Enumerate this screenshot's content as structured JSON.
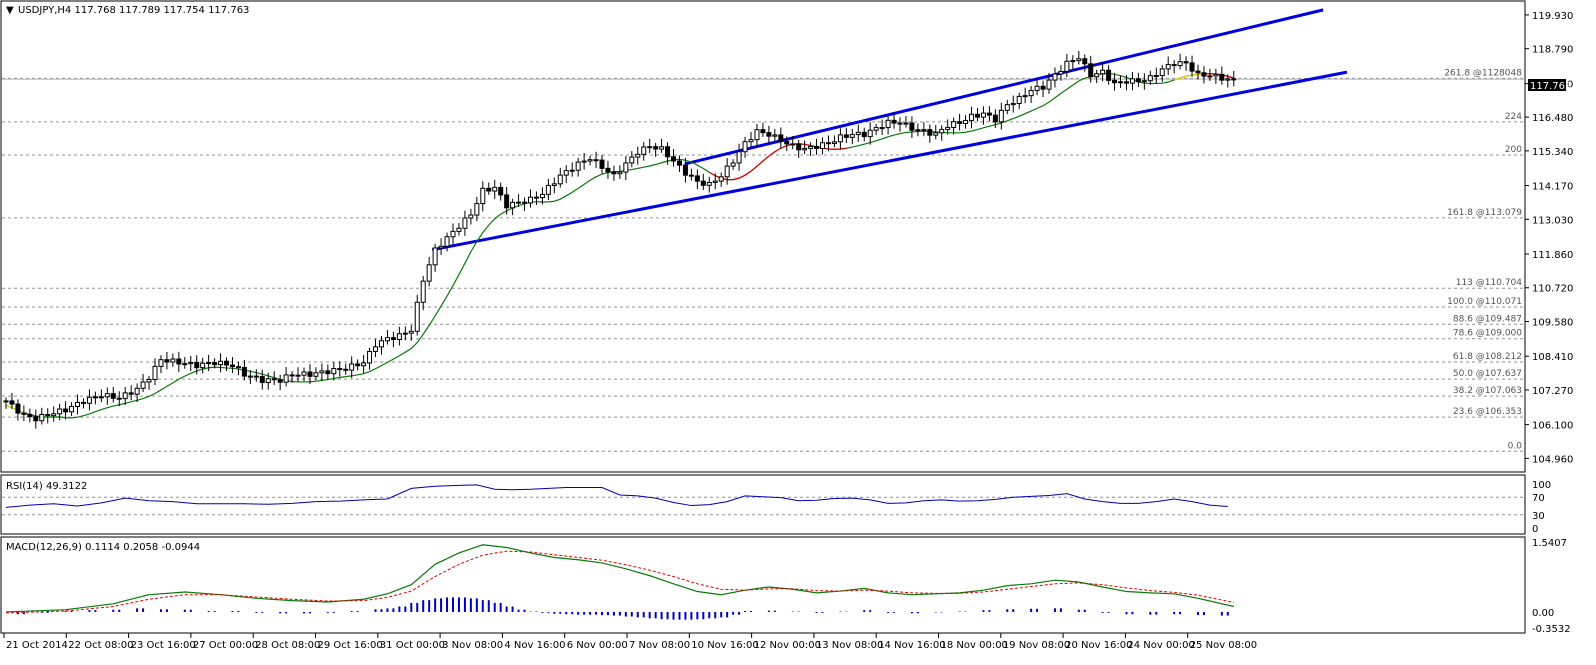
{
  "header": {
    "symbol_line": "USDJPY,H4  117.768 117.789 117.754 117.763",
    "current_price": "117.763"
  },
  "colors": {
    "channel": "#0000e0",
    "ma": "#0a7a0a",
    "ma_alt": "#e00000",
    "ma_yellow": "#e6d200",
    "rsi": "#0000b0",
    "macd_line": "#0a7a0a",
    "signal_line": "#e00000",
    "histogram": "#0000c0",
    "level_line": "#909090",
    "price_tag_bg": "#000000"
  },
  "price_axis": {
    "ticks": [
      "119.930",
      "118.790",
      "117.610",
      "116.480",
      "115.340",
      "114.170",
      "113.030",
      "111.860",
      "110.720",
      "109.580",
      "108.410",
      "107.270",
      "106.100",
      "104.960"
    ],
    "tick_values": [
      119.93,
      118.79,
      117.61,
      116.48,
      115.34,
      114.17,
      113.03,
      111.86,
      110.72,
      109.58,
      108.41,
      107.27,
      106.1,
      104.96
    ]
  },
  "fib_levels": [
    {
      "label": "261.8  @1128048",
      "value": 117.79
    },
    {
      "label": "224",
      "value": 116.32
    },
    {
      "label": "200",
      "value": 115.2
    },
    {
      "label": "161.8  @113.079",
      "value": 113.079
    },
    {
      "label": "113  @110.704",
      "value": 110.704
    },
    {
      "label": "100.0  @110.071",
      "value": 110.071
    },
    {
      "label": "88.6  @109.487",
      "value": 109.487
    },
    {
      "label": "78.6  @109.000",
      "value": 109.0
    },
    {
      "label": "61.8  @108.212",
      "value": 108.212
    },
    {
      "label": "50.0  @107.637",
      "value": 107.637
    },
    {
      "label": "38.2  @107.063",
      "value": 107.063
    },
    {
      "label": "23.6  @106.353",
      "value": 106.353
    },
    {
      "label": "0.0",
      "value": 105.2
    }
  ],
  "rsi": {
    "label": "RSI(14) 49.3122",
    "ticks": [
      "100",
      "70",
      "30",
      "0"
    ],
    "tick_values": [
      100,
      70,
      30,
      0
    ]
  },
  "macd": {
    "label": "MACD(12,26,9) 0.1114 0.2058 -0.0944",
    "ticks": [
      "1.5407",
      "0.00",
      "-0.3532"
    ],
    "tick_values": [
      1.5407,
      0.0,
      -0.3532
    ]
  },
  "time_axis": {
    "labels": [
      "21 Oct 2014",
      "22 Oct 08:00",
      "23 Oct 16:00",
      "27 Oct 00:00",
      "28 Oct 08:00",
      "29 Oct 16:00",
      "31 Oct 00:00",
      "3 Nov 08:00",
      "4 Nov 16:00",
      "6 Nov 00:00",
      "7 Nov 08:00",
      "10 Nov 16:00",
      "12 Nov 00:00",
      "13 Nov 08:00",
      "14 Nov 16:00",
      "18 Nov 00:00",
      "19 Nov 08:00",
      "20 Nov 16:00",
      "24 Nov 00:00",
      "25 Nov 08:00"
    ]
  },
  "chart_data": {
    "type": "candlestick",
    "title": "USDJPY,H4",
    "ohlc_readout": [
      117.768,
      117.789,
      117.754,
      117.763
    ],
    "ylim": [
      104.5,
      120.4
    ],
    "close_series": [
      [
        0,
        106.9
      ],
      [
        3,
        106.4
      ],
      [
        5,
        106.3
      ],
      [
        8,
        106.5
      ],
      [
        10,
        106.6
      ],
      [
        13,
        106.9
      ],
      [
        16,
        107.1
      ],
      [
        19,
        107.0
      ],
      [
        22,
        107.3
      ],
      [
        24,
        107.7
      ],
      [
        26,
        108.3
      ],
      [
        29,
        108.2
      ],
      [
        32,
        108.1
      ],
      [
        35,
        108.2
      ],
      [
        38,
        108.1
      ],
      [
        40,
        107.8
      ],
      [
        43,
        107.6
      ],
      [
        46,
        107.6
      ],
      [
        48,
        107.8
      ],
      [
        51,
        107.8
      ],
      [
        54,
        107.9
      ],
      [
        57,
        108.0
      ],
      [
        60,
        108.2
      ],
      [
        62,
        108.8
      ],
      [
        64,
        109.0
      ],
      [
        66,
        109.1
      ],
      [
        68,
        109.3
      ],
      [
        70,
        111.0
      ],
      [
        72,
        112.0
      ],
      [
        74,
        112.4
      ],
      [
        76,
        112.8
      ],
      [
        78,
        113.2
      ],
      [
        80,
        114.0
      ],
      [
        82,
        114.1
      ],
      [
        84,
        113.5
      ],
      [
        86,
        113.6
      ],
      [
        88,
        113.7
      ],
      [
        90,
        113.9
      ],
      [
        93,
        114.5
      ],
      [
        96,
        114.9
      ],
      [
        98,
        115.1
      ],
      [
        100,
        114.8
      ],
      [
        102,
        114.5
      ],
      [
        104,
        114.9
      ],
      [
        106,
        115.3
      ],
      [
        108,
        115.5
      ],
      [
        110,
        115.4
      ],
      [
        112,
        115.0
      ],
      [
        114,
        114.6
      ],
      [
        116,
        114.3
      ],
      [
        118,
        114.2
      ],
      [
        120,
        114.5
      ],
      [
        122,
        115.0
      ],
      [
        124,
        115.6
      ],
      [
        126,
        116.0
      ],
      [
        128,
        115.9
      ],
      [
        130,
        115.7
      ],
      [
        132,
        115.5
      ],
      [
        134,
        115.4
      ],
      [
        136,
        115.5
      ],
      [
        138,
        115.6
      ],
      [
        140,
        115.8
      ],
      [
        142,
        115.9
      ],
      [
        144,
        115.9
      ],
      [
        146,
        116.1
      ],
      [
        148,
        116.3
      ],
      [
        150,
        116.3
      ],
      [
        152,
        116.1
      ],
      [
        154,
        116.0
      ],
      [
        156,
        115.9
      ],
      [
        158,
        116.2
      ],
      [
        160,
        116.3
      ],
      [
        162,
        116.5
      ],
      [
        164,
        116.6
      ],
      [
        166,
        116.4
      ],
      [
        168,
        116.9
      ],
      [
        170,
        117.1
      ],
      [
        172,
        117.4
      ],
      [
        174,
        117.5
      ],
      [
        176,
        117.9
      ],
      [
        178,
        118.3
      ],
      [
        180,
        118.5
      ],
      [
        182,
        117.9
      ],
      [
        184,
        118.0
      ],
      [
        186,
        117.6
      ],
      [
        188,
        117.7
      ],
      [
        190,
        117.7
      ],
      [
        192,
        117.8
      ],
      [
        194,
        118.1
      ],
      [
        196,
        118.3
      ],
      [
        198,
        118.3
      ],
      [
        200,
        117.9
      ],
      [
        202,
        117.9
      ],
      [
        204,
        117.8
      ],
      [
        206,
        117.7
      ]
    ],
    "channel_upper": [
      [
        113.9,
        114.9
      ],
      [
        221.0,
        120.1
      ]
    ],
    "channel_lower": [
      [
        71.5,
        112.0
      ],
      [
        225.0,
        118.0
      ]
    ],
    "rsi_values": [
      [
        0,
        47
      ],
      [
        4,
        52
      ],
      [
        8,
        55
      ],
      [
        12,
        50
      ],
      [
        16,
        57
      ],
      [
        20,
        68
      ],
      [
        24,
        62
      ],
      [
        28,
        60
      ],
      [
        32,
        55
      ],
      [
        36,
        55
      ],
      [
        40,
        55
      ],
      [
        44,
        54
      ],
      [
        48,
        56
      ],
      [
        52,
        60
      ],
      [
        56,
        61
      ],
      [
        60,
        64
      ],
      [
        64,
        66
      ],
      [
        68,
        90
      ],
      [
        72,
        95
      ],
      [
        76,
        97
      ],
      [
        79,
        98
      ],
      [
        82,
        88
      ],
      [
        85,
        87
      ],
      [
        88,
        88
      ],
      [
        91,
        90
      ],
      [
        94,
        92
      ],
      [
        97,
        92
      ],
      [
        100,
        92
      ],
      [
        103,
        75
      ],
      [
        106,
        73
      ],
      [
        109,
        68
      ],
      [
        112,
        58
      ],
      [
        115,
        51
      ],
      [
        118,
        53
      ],
      [
        121,
        60
      ],
      [
        124,
        73
      ],
      [
        127,
        71
      ],
      [
        130,
        69
      ],
      [
        133,
        62
      ],
      [
        136,
        63
      ],
      [
        139,
        67
      ],
      [
        142,
        68
      ],
      [
        145,
        64
      ],
      [
        148,
        56
      ],
      [
        151,
        57
      ],
      [
        154,
        62
      ],
      [
        157,
        64
      ],
      [
        160,
        61
      ],
      [
        163,
        62
      ],
      [
        166,
        65
      ],
      [
        169,
        70
      ],
      [
        172,
        72
      ],
      [
        175,
        74
      ],
      [
        178,
        78
      ],
      [
        181,
        66
      ],
      [
        184,
        60
      ],
      [
        187,
        56
      ],
      [
        190,
        56
      ],
      [
        193,
        60
      ],
      [
        196,
        66
      ],
      [
        199,
        60
      ],
      [
        202,
        52
      ],
      [
        205,
        49
      ]
    ],
    "macd_values": [
      [
        0,
        0.0
      ],
      [
        10,
        0.05
      ],
      [
        18,
        0.18
      ],
      [
        24,
        0.38
      ],
      [
        30,
        0.44
      ],
      [
        36,
        0.38
      ],
      [
        42,
        0.3
      ],
      [
        48,
        0.25
      ],
      [
        54,
        0.22
      ],
      [
        60,
        0.28
      ],
      [
        64,
        0.4
      ],
      [
        68,
        0.6
      ],
      [
        72,
        1.05
      ],
      [
        76,
        1.3
      ],
      [
        80,
        1.48
      ],
      [
        84,
        1.42
      ],
      [
        88,
        1.3
      ],
      [
        92,
        1.2
      ],
      [
        96,
        1.15
      ],
      [
        100,
        1.08
      ],
      [
        104,
        0.95
      ],
      [
        108,
        0.8
      ],
      [
        112,
        0.62
      ],
      [
        116,
        0.45
      ],
      [
        120,
        0.38
      ],
      [
        124,
        0.48
      ],
      [
        128,
        0.55
      ],
      [
        132,
        0.5
      ],
      [
        136,
        0.42
      ],
      [
        140,
        0.46
      ],
      [
        144,
        0.52
      ],
      [
        148,
        0.42
      ],
      [
        152,
        0.38
      ],
      [
        156,
        0.4
      ],
      [
        160,
        0.42
      ],
      [
        164,
        0.48
      ],
      [
        168,
        0.58
      ],
      [
        172,
        0.62
      ],
      [
        176,
        0.7
      ],
      [
        180,
        0.66
      ],
      [
        184,
        0.55
      ],
      [
        188,
        0.45
      ],
      [
        192,
        0.42
      ],
      [
        196,
        0.4
      ],
      [
        200,
        0.3
      ],
      [
        206,
        0.12
      ]
    ],
    "signal_values": [
      [
        0,
        -0.02
      ],
      [
        10,
        0.02
      ],
      [
        18,
        0.12
      ],
      [
        24,
        0.28
      ],
      [
        30,
        0.38
      ],
      [
        36,
        0.38
      ],
      [
        42,
        0.33
      ],
      [
        48,
        0.28
      ],
      [
        54,
        0.24
      ],
      [
        60,
        0.25
      ],
      [
        64,
        0.32
      ],
      [
        68,
        0.46
      ],
      [
        72,
        0.78
      ],
      [
        76,
        1.05
      ],
      [
        80,
        1.25
      ],
      [
        84,
        1.34
      ],
      [
        88,
        1.32
      ],
      [
        92,
        1.26
      ],
      [
        96,
        1.2
      ],
      [
        100,
        1.14
      ],
      [
        104,
        1.04
      ],
      [
        108,
        0.92
      ],
      [
        112,
        0.78
      ],
      [
        116,
        0.62
      ],
      [
        120,
        0.5
      ],
      [
        124,
        0.48
      ],
      [
        128,
        0.51
      ],
      [
        132,
        0.51
      ],
      [
        136,
        0.47
      ],
      [
        140,
        0.46
      ],
      [
        144,
        0.48
      ],
      [
        148,
        0.46
      ],
      [
        152,
        0.42
      ],
      [
        156,
        0.41
      ],
      [
        160,
        0.41
      ],
      [
        164,
        0.44
      ],
      [
        168,
        0.5
      ],
      [
        172,
        0.56
      ],
      [
        176,
        0.62
      ],
      [
        180,
        0.64
      ],
      [
        184,
        0.6
      ],
      [
        188,
        0.53
      ],
      [
        192,
        0.47
      ],
      [
        196,
        0.43
      ],
      [
        200,
        0.37
      ],
      [
        206,
        0.21
      ]
    ],
    "hist_values": [
      [
        2,
        -0.05
      ],
      [
        6,
        -0.02
      ],
      [
        10,
        0.02
      ],
      [
        14,
        0.04
      ],
      [
        18,
        0.05
      ],
      [
        22,
        0.08
      ],
      [
        26,
        0.06
      ],
      [
        30,
        0.05
      ],
      [
        34,
        0.02
      ],
      [
        38,
        0.0
      ],
      [
        42,
        -0.02
      ],
      [
        46,
        -0.03
      ],
      [
        50,
        -0.03
      ],
      [
        54,
        -0.02
      ],
      [
        58,
        0.02
      ],
      [
        62,
        0.06
      ],
      [
        64,
        0.08
      ],
      [
        66,
        0.12
      ],
      [
        68,
        0.2
      ],
      [
        70,
        0.26
      ],
      [
        72,
        0.3
      ],
      [
        74,
        0.32
      ],
      [
        76,
        0.32
      ],
      [
        78,
        0.3
      ],
      [
        80,
        0.26
      ],
      [
        82,
        0.2
      ],
      [
        84,
        0.12
      ],
      [
        86,
        0.05
      ],
      [
        88,
        0.01
      ],
      [
        90,
        -0.02
      ],
      [
        92,
        -0.04
      ],
      [
        94,
        -0.05
      ],
      [
        96,
        -0.06
      ],
      [
        98,
        -0.06
      ],
      [
        100,
        -0.07
      ],
      [
        102,
        -0.08
      ],
      [
        104,
        -0.1
      ],
      [
        106,
        -0.12
      ],
      [
        108,
        -0.14
      ],
      [
        110,
        -0.16
      ],
      [
        112,
        -0.17
      ],
      [
        114,
        -0.17
      ],
      [
        116,
        -0.16
      ],
      [
        118,
        -0.14
      ],
      [
        120,
        -0.12
      ],
      [
        122,
        -0.06
      ],
      [
        124,
        0.0
      ],
      [
        128,
        0.03
      ],
      [
        132,
        0.01
      ],
      [
        136,
        -0.02
      ],
      [
        140,
        0.01
      ],
      [
        144,
        0.04
      ],
      [
        148,
        -0.02
      ],
      [
        152,
        -0.03
      ],
      [
        156,
        -0.01
      ],
      [
        160,
        0.01
      ],
      [
        164,
        0.04
      ],
      [
        168,
        0.06
      ],
      [
        172,
        0.07
      ],
      [
        176,
        0.08
      ],
      [
        180,
        0.05
      ],
      [
        184,
        -0.02
      ],
      [
        188,
        -0.05
      ],
      [
        192,
        -0.06
      ],
      [
        196,
        -0.05
      ],
      [
        200,
        -0.07
      ],
      [
        204,
        -0.08
      ]
    ]
  }
}
